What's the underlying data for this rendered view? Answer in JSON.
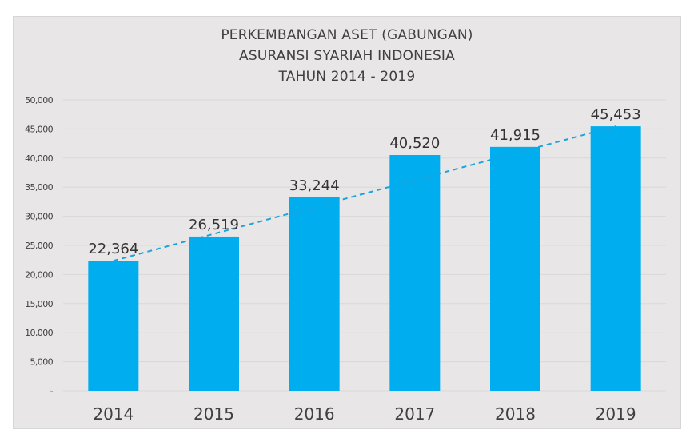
{
  "chart_data": {
    "type": "bar",
    "title": [
      "PERKEMBANGAN ASET (GABUNGAN)",
      "ASURANSI SYARIAH INDONESIA",
      "TAHUN 2014 - 2019"
    ],
    "categories": [
      "2014",
      "2015",
      "2016",
      "2017",
      "2018",
      "2019"
    ],
    "values": [
      22364,
      26519,
      33244,
      40520,
      41915,
      45453
    ],
    "data_labels": [
      "22,364",
      "26,519",
      "33,244",
      "40,520",
      "41,915",
      "45,453"
    ],
    "ylim": [
      0,
      50000
    ],
    "yticks": [
      0,
      5000,
      10000,
      15000,
      20000,
      25000,
      30000,
      35000,
      40000,
      45000,
      50000
    ],
    "ytick_labels": [
      "-",
      "5,000",
      "10,000",
      "15,000",
      "20,000",
      "25,000",
      "30,000",
      "35,000",
      "40,000",
      "45,000",
      "50,000"
    ],
    "grid": true,
    "trendline": "dashed linear",
    "colors": {
      "bar": "#00aeef",
      "trendline": "#1aa3dc",
      "background": "#e8e6e7",
      "text": "#404040",
      "grid": "#d9d9d9"
    }
  }
}
